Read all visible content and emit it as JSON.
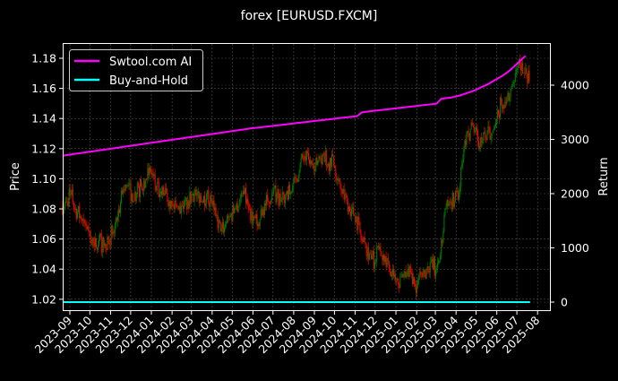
{
  "chart_data": {
    "type": "line",
    "title": "forex [EURUSD.FXCM]",
    "ylabel": "Price",
    "y2label": "Return",
    "ylim": [
      1.015,
      1.19
    ],
    "y2lim": [
      -100,
      4800
    ],
    "yticks": [
      "1.02",
      "1.04",
      "1.06",
      "1.08",
      "1.10",
      "1.12",
      "1.14",
      "1.16",
      "1.18"
    ],
    "y2ticks": [
      "0",
      "1000",
      "2000",
      "3000",
      "4000"
    ],
    "xticks": [
      "2023-09",
      "2023-10",
      "2023-11",
      "2023-12",
      "2024-01",
      "2024-02",
      "2024-03",
      "2024-04",
      "2024-05",
      "2024-06",
      "2024-07",
      "2024-08",
      "2024-09",
      "2024-10",
      "2024-11",
      "2024-12",
      "2025-01",
      "2025-02",
      "2025-03",
      "2025-04",
      "2025-05",
      "2025-06",
      "2025-07",
      "2025-08"
    ],
    "grid": true,
    "legend_position": "top-left",
    "background": "#000000",
    "x": [
      "2023-08-21",
      "2023-08-28",
      "2023-09-04",
      "2023-09-11",
      "2023-09-18",
      "2023-09-25",
      "2023-10-02",
      "2023-10-09",
      "2023-10-16",
      "2023-10-23",
      "2023-10-30",
      "2023-11-06",
      "2023-11-13",
      "2023-11-20",
      "2023-11-27",
      "2023-12-04",
      "2023-12-11",
      "2023-12-18",
      "2023-12-25",
      "2024-01-01",
      "2024-01-08",
      "2024-01-15",
      "2024-01-22",
      "2024-01-29",
      "2024-02-05",
      "2024-02-12",
      "2024-02-19",
      "2024-02-26",
      "2024-03-04",
      "2024-03-11",
      "2024-03-18",
      "2024-03-25",
      "2024-04-01",
      "2024-04-08",
      "2024-04-15",
      "2024-04-22",
      "2024-04-29",
      "2024-05-06",
      "2024-05-13",
      "2024-05-20",
      "2024-05-27",
      "2024-06-03",
      "2024-06-10",
      "2024-06-17",
      "2024-06-24",
      "2024-07-01",
      "2024-07-08",
      "2024-07-15",
      "2024-07-22",
      "2024-07-29",
      "2024-08-05",
      "2024-08-12",
      "2024-08-19",
      "2024-08-26",
      "2024-09-02",
      "2024-09-09",
      "2024-09-16",
      "2024-09-23",
      "2024-09-30",
      "2024-10-07",
      "2024-10-14",
      "2024-10-21",
      "2024-10-28",
      "2024-11-04",
      "2024-11-11",
      "2024-11-18",
      "2024-11-25",
      "2024-12-02",
      "2024-12-09",
      "2024-12-16",
      "2024-12-23",
      "2024-12-30",
      "2025-01-06",
      "2025-01-13",
      "2025-01-20",
      "2025-01-27",
      "2025-02-03",
      "2025-02-10",
      "2025-02-17",
      "2025-02-24",
      "2025-03-03",
      "2025-03-10",
      "2025-03-17",
      "2025-03-24",
      "2025-03-31",
      "2025-04-07",
      "2025-04-14",
      "2025-04-21",
      "2025-04-28",
      "2025-05-05",
      "2025-05-12",
      "2025-05-19",
      "2025-05-26",
      "2025-06-02",
      "2025-06-09",
      "2025-06-16",
      "2025-06-23",
      "2025-06-30",
      "2025-07-07",
      "2025-07-14"
    ],
    "price": [
      1.085,
      1.09,
      1.08,
      1.075,
      1.07,
      1.065,
      1.055,
      1.06,
      1.055,
      1.06,
      1.065,
      1.075,
      1.09,
      1.095,
      1.09,
      1.09,
      1.095,
      1.1,
      1.105,
      1.095,
      1.09,
      1.09,
      1.085,
      1.08,
      1.08,
      1.08,
      1.085,
      1.09,
      1.09,
      1.085,
      1.09,
      1.085,
      1.075,
      1.065,
      1.07,
      1.075,
      1.08,
      1.085,
      1.09,
      1.08,
      1.075,
      1.07,
      1.08,
      1.085,
      1.09,
      1.09,
      1.085,
      1.09,
      1.09,
      1.1,
      1.11,
      1.115,
      1.11,
      1.105,
      1.115,
      1.115,
      1.11,
      1.115,
      1.1,
      1.09,
      1.085,
      1.08,
      1.075,
      1.06,
      1.055,
      1.05,
      1.045,
      1.055,
      1.045,
      1.04,
      1.035,
      1.03,
      1.035,
      1.04,
      1.03,
      1.03,
      1.035,
      1.04,
      1.045,
      1.04,
      1.05,
      1.08,
      1.085,
      1.085,
      1.09,
      1.12,
      1.13,
      1.135,
      1.125,
      1.125,
      1.13,
      1.13,
      1.14,
      1.15,
      1.15,
      1.16,
      1.17,
      1.175,
      1.17,
      1.165
    ],
    "series": [
      {
        "name": "Swtool.com AI",
        "color": "#ff00ff",
        "axis": "right",
        "values": [
          2700,
          2712,
          2725,
          2737,
          2750,
          2762,
          2775,
          2787,
          2800,
          2812,
          2825,
          2837,
          2850,
          2862,
          2875,
          2887,
          2900,
          2912,
          2925,
          2937,
          2950,
          2962,
          2975,
          2987,
          3000,
          3012,
          3025,
          3037,
          3050,
          3062,
          3075,
          3087,
          3100,
          3112,
          3125,
          3137,
          3150,
          3162,
          3175,
          3187,
          3200,
          3210,
          3220,
          3230,
          3240,
          3250,
          3260,
          3270,
          3280,
          3290,
          3300,
          3310,
          3320,
          3330,
          3340,
          3350,
          3360,
          3370,
          3380,
          3390,
          3400,
          3410,
          3420,
          3430,
          3500,
          3510,
          3520,
          3530,
          3540,
          3550,
          3560,
          3570,
          3580,
          3590,
          3600,
          3610,
          3620,
          3630,
          3640,
          3650,
          3660,
          3750,
          3760,
          3770,
          3790,
          3810,
          3840,
          3870,
          3900,
          3940,
          3980,
          4020,
          4070,
          4120,
          4170,
          4230,
          4300,
          4380,
          4460,
          4540
        ]
      },
      {
        "name": "Buy-and-Hold",
        "color": "#00ffff",
        "axis": "right",
        "value": 0
      }
    ],
    "candle_up_color": "#008000",
    "candle_down_color": "#ff0000"
  }
}
